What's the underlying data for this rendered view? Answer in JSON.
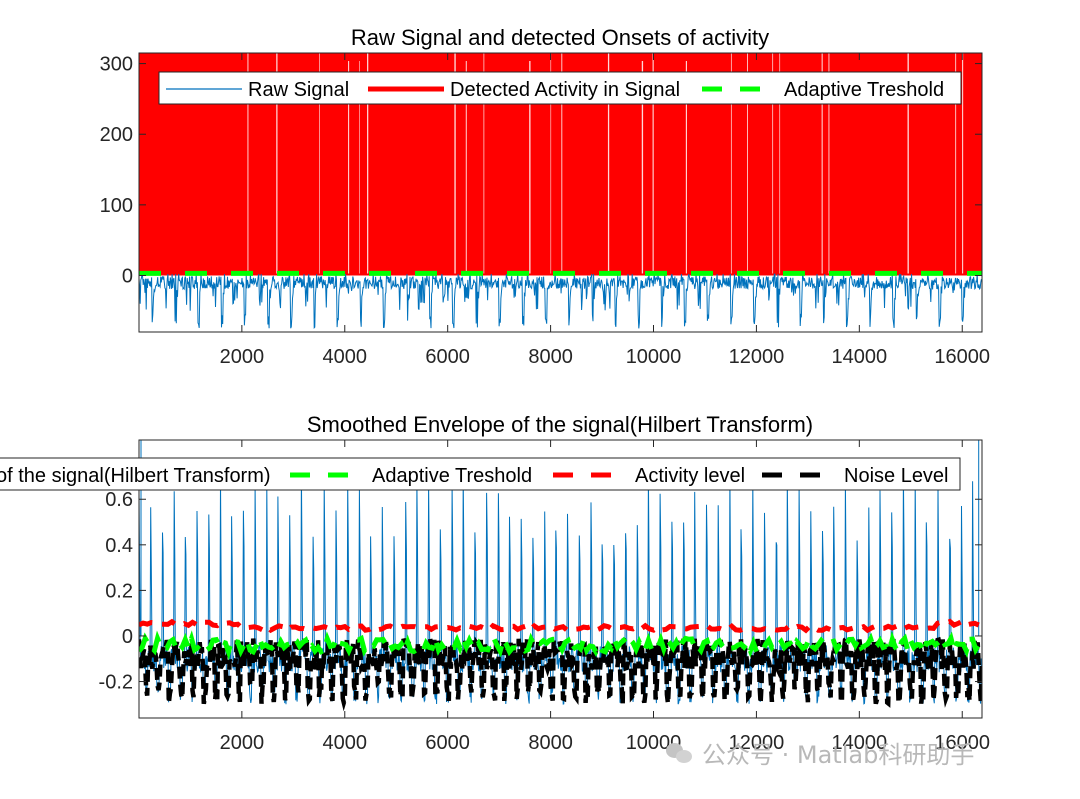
{
  "chart_data": [
    {
      "type": "line",
      "title": "Raw Signal and detected Onsets of activity",
      "xlim": [
        1,
        16384
      ],
      "ylim": [
        -80,
        315
      ],
      "xticks": [
        2000,
        4000,
        6000,
        8000,
        10000,
        12000,
        14000,
        16000
      ],
      "yticks": [
        0,
        100,
        200,
        300
      ],
      "legend_location": "top",
      "legend": [
        "Raw Signal",
        "Detected Activity in Signal",
        "Adaptive Treshold"
      ],
      "series": [
        {
          "name": "Raw Signal",
          "color": "#0072BD",
          "style": "solid thin",
          "description_values": {
            "period": 450,
            "baseline": -10,
            "trough": -75,
            "peak": 2
          }
        },
        {
          "name": "Detected Activity in Signal",
          "color": "#FF0000",
          "style": "solid thick",
          "levels": [
            0,
            315
          ]
        },
        {
          "name": "Adaptive Treshold",
          "color": "#00FF00",
          "style": "dashed thick",
          "value": 3
        }
      ],
      "grid": false
    },
    {
      "type": "line",
      "title": "Smoothed Envelope of the signal(Hilbert Transform)",
      "xlim": [
        1,
        16384
      ],
      "ylim": [
        -0.36,
        0.86
      ],
      "xticks": [
        2000,
        4000,
        6000,
        8000,
        10000,
        12000,
        14000,
        16000
      ],
      "yticks": [
        -0.2,
        0,
        0.2,
        0.4,
        0.6
      ],
      "ytick_labels": [
        "-0.2",
        "0",
        "0.2",
        "0.4",
        "0.6"
      ],
      "legend_location": "top (clipped at left)",
      "legend": [
        "of the signal(Hilbert Transform)",
        "Adaptive Treshold",
        "Activity level",
        "Noise Level"
      ],
      "series": [
        {
          "name": "Smoothed Envelope of the signal(Hilbert Transform)",
          "color": "#0072BD",
          "style": "solid thin",
          "description_values": {
            "period": 225,
            "peak": 0.72,
            "baseline": -0.1,
            "trough": -0.3
          }
        },
        {
          "name": "Adaptive Treshold",
          "color": "#00FF00",
          "style": "dashed thick",
          "value": -0.04
        },
        {
          "name": "Activity level",
          "color": "#FF0000",
          "style": "dashed thick",
          "value": 0.05
        },
        {
          "name": "Noise Level",
          "color": "#000000",
          "style": "dashed thick",
          "range": [
            -0.3,
            0.0
          ]
        }
      ],
      "grid": false
    }
  ],
  "watermark": "公众号 · Matlab科研助手"
}
